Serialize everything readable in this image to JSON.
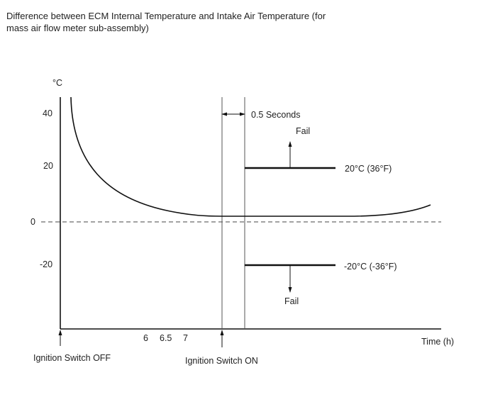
{
  "title": "Difference between ECM Internal Temperature and Intake Air Temperature (for mass air flow meter sub-assembly)",
  "y_unit": "°C",
  "y_ticks": [
    "40",
    "20",
    "0",
    "-20"
  ],
  "x_ticks": [
    "6",
    "6.5",
    "7"
  ],
  "x_label": "Time (h)",
  "interval_label": "0.5 Seconds",
  "upper_threshold": {
    "label": "20°C (36°F)",
    "fail": "Fail"
  },
  "lower_threshold": {
    "label": "-20°C (-36°F)",
    "fail": "Fail"
  },
  "events": {
    "off": "Ignition Switch OFF",
    "on": "Ignition Switch ON"
  }
}
